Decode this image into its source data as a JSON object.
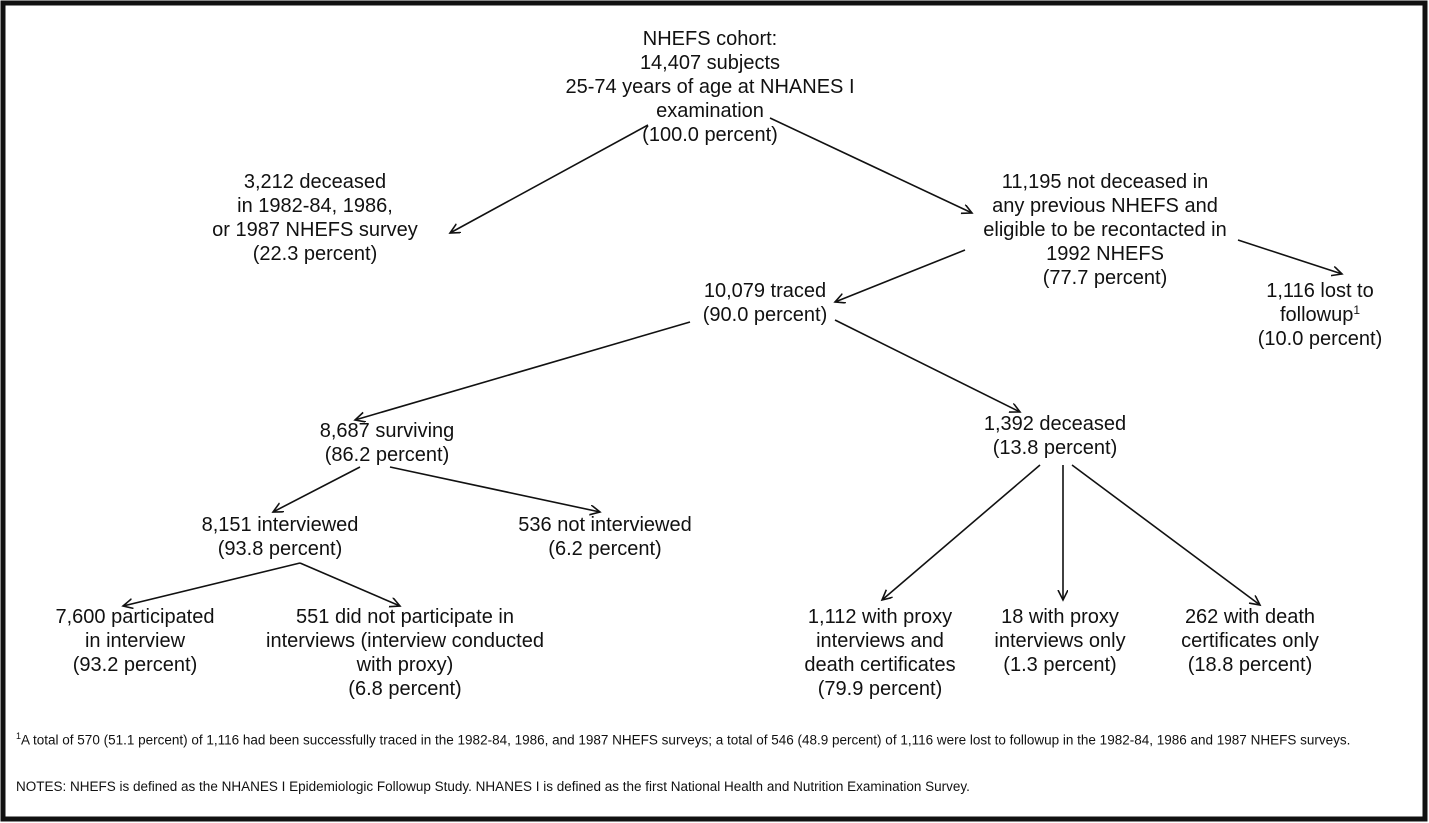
{
  "nodes": [
    {
      "lines": [
        "NHEFS cohort:",
        "14,407 subjects",
        "25-74 years of age at NHANES I",
        "examination",
        "(100.0 percent)"
      ]
    },
    {
      "lines": [
        "3,212 deceased",
        "in 1982-84, 1986,",
        "or 1987 NHEFS survey",
        "(22.3 percent)"
      ]
    },
    {
      "lines": [
        "11,195 not deceased in",
        "any previous NHEFS and",
        "eligible to be recontacted in",
        "1992 NHEFS",
        "(77.7 percent)"
      ]
    },
    {
      "lines": [
        "1,116 lost to",
        "followup",
        "(10.0 percent)"
      ],
      "footnote_ref": "1"
    },
    {
      "lines": [
        "10,079 traced",
        "(90.0 percent)"
      ]
    },
    {
      "lines": [
        "8,687 surviving",
        "(86.2 percent)"
      ]
    },
    {
      "lines": [
        "1,392 deceased",
        "(13.8 percent)"
      ]
    },
    {
      "lines": [
        "8,151 interviewed",
        "(93.8 percent)"
      ]
    },
    {
      "lines": [
        "536 not interviewed",
        "(6.2 percent)"
      ]
    },
    {
      "lines": [
        "7,600 participated",
        "in interview",
        "(93.2 percent)"
      ]
    },
    {
      "lines": [
        "551 did not participate in",
        "interviews (interview conducted",
        "with proxy)",
        "(6.8 percent)"
      ]
    },
    {
      "lines": [
        "1,112 with proxy",
        "interviews and",
        "death certificates",
        "(79.9 percent)"
      ]
    },
    {
      "lines": [
        "18 with proxy",
        "interviews only",
        "(1.3 percent)"
      ]
    },
    {
      "lines": [
        "262 with death",
        "certificates only",
        "(18.8 percent)"
      ]
    }
  ],
  "footnote": {
    "ref": "1",
    "text": "A total of 570 (51.1 percent) of 1,116 had been successfully traced in the 1982-84, 1986, and 1987 NHEFS surveys; a total of 546 (48.9 percent) of 1,116 were lost to followup in the 1982-84, 1986 and 1987 NHEFS surveys."
  },
  "notes": "NOTES: NHEFS is defined as the NHANES I Epidemiologic Followup Study. NHANES I is defined as the first National Health and Nutrition Examination Survey."
}
